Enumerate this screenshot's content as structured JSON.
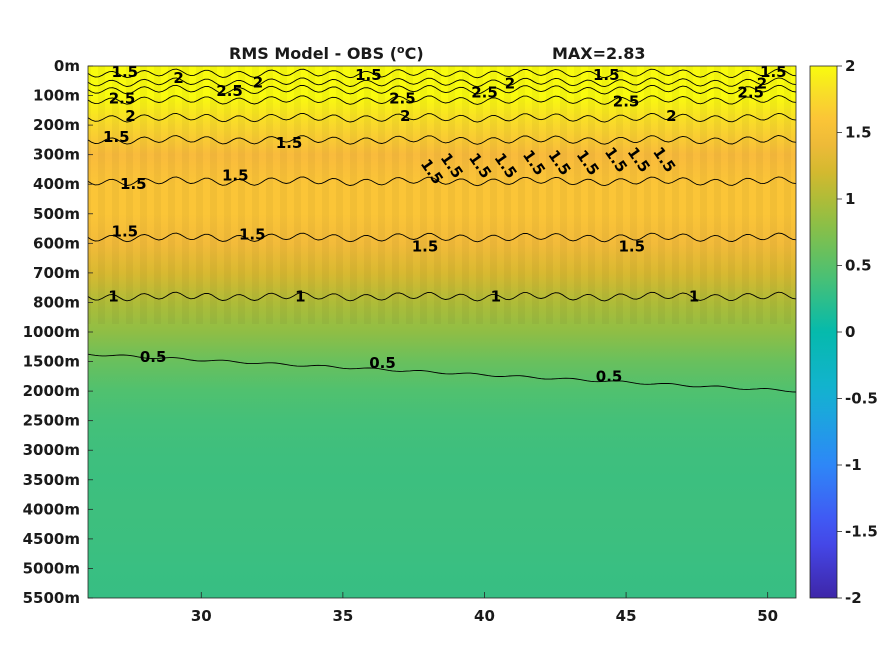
{
  "chart_data": {
    "type": "heatmap",
    "title": "RMS Model - OBS (",
    "title_unit_sup": "o",
    "title_unit_tail": "C)",
    "max_text": "MAX=2.83",
    "xlabel": "",
    "ylabel": "",
    "xlim": [
      26,
      51
    ],
    "x_ticks": [
      30,
      35,
      40,
      45,
      50
    ],
    "y_ticks": [
      "0m",
      "100m",
      "200m",
      "300m",
      "400m",
      "500m",
      "600m",
      "700m",
      "800m",
      "1000m",
      "1500m",
      "2000m",
      "2500m",
      "3000m",
      "3500m",
      "4000m",
      "4500m",
      "5000m",
      "5500m"
    ],
    "colorbar": {
      "min": -2,
      "max": 2,
      "ticks": [
        "2",
        "1.5",
        "1",
        "0.5",
        "0",
        "-0.5",
        "-1",
        "-1.5",
        "-2"
      ],
      "colormap": "parula"
    },
    "field_profile": [
      {
        "depth": "0m",
        "value": 2.2
      },
      {
        "depth": "100m",
        "value": 2.3
      },
      {
        "depth": "200m",
        "value": 1.75
      },
      {
        "depth": "300m",
        "value": 1.5
      },
      {
        "depth": "400m",
        "value": 1.6
      },
      {
        "depth": "500m",
        "value": 1.6
      },
      {
        "depth": "600m",
        "value": 1.45
      },
      {
        "depth": "700m",
        "value": 1.25
      },
      {
        "depth": "800m",
        "value": 1.0
      },
      {
        "depth": "1000m",
        "value": 0.82
      },
      {
        "depth": "1500m",
        "value": 0.6
      },
      {
        "depth": "2000m",
        "value": 0.45
      },
      {
        "depth": "2500m",
        "value": 0.38
      },
      {
        "depth": "3000m",
        "value": 0.35
      },
      {
        "depth": "3500m",
        "value": 0.33
      },
      {
        "depth": "4000m",
        "value": 0.34
      },
      {
        "depth": "4500m",
        "value": 0.33
      },
      {
        "depth": "5000m",
        "value": 0.31
      },
      {
        "depth": "5500m",
        "value": 0.3
      }
    ],
    "contour_labels": [
      {
        "text": "1.5",
        "x": 27.3,
        "depth_index": 0.2
      },
      {
        "text": "2",
        "x": 29.2,
        "depth_index": 0.4
      },
      {
        "text": "2.5",
        "x": 27.2,
        "depth_index": 1.1
      },
      {
        "text": "2.5",
        "x": 31.0,
        "depth_index": 0.85
      },
      {
        "text": "2",
        "x": 32.0,
        "depth_index": 0.55
      },
      {
        "text": "1.5",
        "x": 35.9,
        "depth_index": 0.3
      },
      {
        "text": "2.5",
        "x": 37.1,
        "depth_index": 1.1
      },
      {
        "text": "2",
        "x": 37.2,
        "depth_index": 1.7
      },
      {
        "text": "2.5",
        "x": 40.0,
        "depth_index": 0.9
      },
      {
        "text": "2",
        "x": 40.9,
        "depth_index": 0.6
      },
      {
        "text": "1.5",
        "x": 44.3,
        "depth_index": 0.3
      },
      {
        "text": "2.5",
        "x": 45.0,
        "depth_index": 1.2
      },
      {
        "text": "2",
        "x": 46.6,
        "depth_index": 1.7
      },
      {
        "text": "1.5",
        "x": 50.2,
        "depth_index": 0.2
      },
      {
        "text": "2",
        "x": 49.8,
        "depth_index": 0.6
      },
      {
        "text": "2.5",
        "x": 49.4,
        "depth_index": 0.9
      },
      {
        "text": "2",
        "x": 27.5,
        "depth_index": 1.7
      },
      {
        "text": "1.5",
        "x": 27.0,
        "depth_index": 2.4
      },
      {
        "text": "1.5",
        "x": 33.1,
        "depth_index": 2.6
      },
      {
        "text": "1.5",
        "x": 27.6,
        "depth_index": 4.0
      },
      {
        "text": "1.5",
        "x": 31.2,
        "depth_index": 3.7
      },
      {
        "text": "1.5",
        "x": 38.0,
        "depth_index": 3.5
      },
      {
        "text": "1.5",
        "x": 38.7,
        "depth_index": 3.3
      },
      {
        "text": "1.5",
        "x": 39.7,
        "depth_index": 3.3
      },
      {
        "text": "1.5",
        "x": 40.6,
        "depth_index": 3.3
      },
      {
        "text": "1.5",
        "x": 41.6,
        "depth_index": 3.2
      },
      {
        "text": "1.5",
        "x": 42.5,
        "depth_index": 3.2
      },
      {
        "text": "1.5",
        "x": 43.5,
        "depth_index": 3.2
      },
      {
        "text": "1.5",
        "x": 44.5,
        "depth_index": 3.1
      },
      {
        "text": "1.5",
        "x": 45.3,
        "depth_index": 3.1
      },
      {
        "text": "1.5",
        "x": 46.2,
        "depth_index": 3.1
      },
      {
        "text": "1.5",
        "x": 27.3,
        "depth_index": 5.6
      },
      {
        "text": "1.5",
        "x": 31.8,
        "depth_index": 5.7
      },
      {
        "text": "1.5",
        "x": 37.9,
        "depth_index": 6.1
      },
      {
        "text": "1.5",
        "x": 45.2,
        "depth_index": 6.1
      },
      {
        "text": "1",
        "x": 26.9,
        "depth_index": 7.8
      },
      {
        "text": "1",
        "x": 33.5,
        "depth_index": 7.8
      },
      {
        "text": "1",
        "x": 40.4,
        "depth_index": 7.8
      },
      {
        "text": "1",
        "x": 47.4,
        "depth_index": 7.8
      },
      {
        "text": "0.5",
        "x": 28.3,
        "depth_index": 9.85
      },
      {
        "text": "0.5",
        "x": 36.4,
        "depth_index": 10.05
      },
      {
        "text": "0.5",
        "x": 44.4,
        "depth_index": 10.5
      }
    ],
    "contour_lines": [
      {
        "level": "1.5",
        "depth_index": 0.25,
        "wavy": true
      },
      {
        "level": "2",
        "depth_index": 0.55,
        "wavy": true
      },
      {
        "level": "2.5",
        "depth_index": 0.8,
        "wavy": true
      },
      {
        "level": "2.5",
        "depth_index": 1.15,
        "wavy": true
      },
      {
        "level": "2",
        "depth_index": 1.75,
        "wavy": true
      },
      {
        "level": "1.5",
        "depth_index": 2.5,
        "wavy": true
      },
      {
        "level": "1.5",
        "depth_index": 3.9,
        "wavy": true
      },
      {
        "level": "1.5",
        "depth_index": 5.8,
        "wavy": true
      },
      {
        "level": "1",
        "depth_index": 7.8,
        "wavy": true
      },
      {
        "level": "0.5",
        "depth_index": 9.75,
        "wavy": false,
        "end_depth_index": 11.0
      }
    ]
  }
}
